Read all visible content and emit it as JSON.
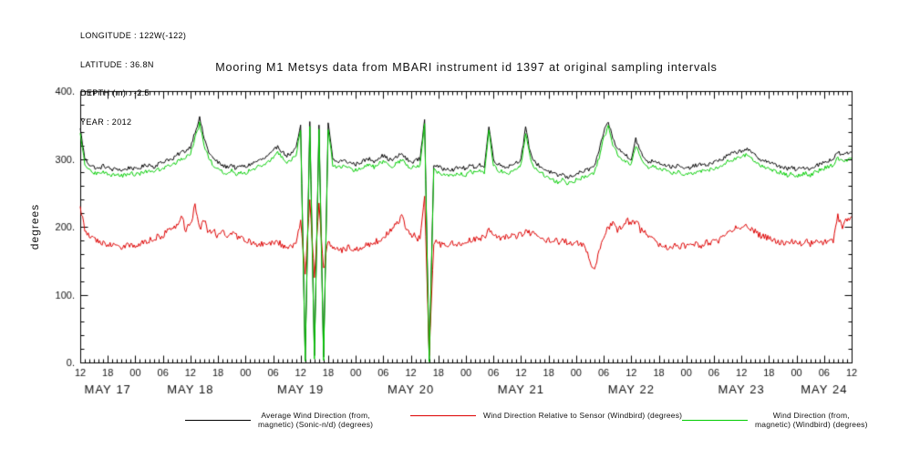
{
  "header": {
    "lines": [
      "LONGITUDE : 122W(-122)",
      "LATITUDE : 36.8N",
      "DEPTH (m) : -2.5",
      "YEAR : 2012"
    ]
  },
  "title": "Mooring M1 Metsys data from MBARI instrument id 1397 at original sampling intervals",
  "legend": {
    "items": [
      {
        "color": "#000000",
        "lines": [
          "Average Wind Direction (from,",
          "magnetic) (Sonic-n/d) (degrees)"
        ]
      },
      {
        "color": "#dd0000",
        "lines": [
          "Wind Direction Relative to Sensor (Windbird) (degrees)"
        ]
      },
      {
        "color": "#00cc00",
        "lines": [
          "Wind Direction (from,",
          "magnetic) (Windbird) (degrees)"
        ]
      }
    ]
  },
  "chart_data": {
    "type": "line",
    "title": "Mooring M1 Metsys data from MBARI instrument id 1397 at original sampling intervals",
    "xlabel": "",
    "ylabel": "degrees",
    "ylim": [
      0,
      400
    ],
    "grid": false,
    "legend_position": "bottom",
    "x_unit": "hours since 12:00 MAY 17 2012",
    "x_start": 0,
    "x_step": 1,
    "x_end": 168,
    "x_major_tick_hours": 6,
    "x_minor_tick_hours": 1,
    "y_minor_tick": 20,
    "y_ticks": {
      "values": [
        0,
        100,
        200,
        300,
        400
      ],
      "labels": [
        "0.",
        "100.",
        "200.",
        "300.",
        "400."
      ]
    },
    "x_tick_labels": [
      "12",
      "18",
      "00",
      "06",
      "12",
      "18",
      "00",
      "06",
      "12",
      "18",
      "00",
      "06",
      "12",
      "18",
      "00",
      "06",
      "12",
      "18",
      "00",
      "06",
      "12",
      "18",
      "00",
      "06",
      "12",
      "18",
      "00",
      "06",
      "12"
    ],
    "day_labels": [
      {
        "label": "MAY 17",
        "center_hour": 6
      },
      {
        "label": "MAY 18",
        "center_hour": 24
      },
      {
        "label": "MAY 19",
        "center_hour": 48
      },
      {
        "label": "MAY 20",
        "center_hour": 72
      },
      {
        "label": "MAY 21",
        "center_hour": 96
      },
      {
        "label": "MAY 22",
        "center_hour": 120
      },
      {
        "label": "MAY 23",
        "center_hour": 144
      },
      {
        "label": "MAY 24",
        "center_hour": 162
      }
    ],
    "series": [
      {
        "name": "Average Wind Direction (from, magnetic) (Sonic-n/d) (degrees)",
        "color": "#000000",
        "noise": 3,
        "values": [
          345,
          300,
          292,
          288,
          285,
          290,
          287,
          284,
          286,
          283,
          285,
          288,
          284,
          287,
          290,
          292,
          288,
          293,
          295,
          300,
          298,
          305,
          310,
          312,
          318,
          340,
          360,
          330,
          310,
          300,
          295,
          290,
          288,
          292,
          285,
          290,
          288,
          292,
          295,
          298,
          300,
          305,
          310,
          320,
          310,
          305,
          308,
          315,
          350,
          5,
          355,
          10,
          350,
          8,
          352,
          300,
          295,
          298,
          296,
          294,
          292,
          295,
          298,
          300,
          297,
          302,
          305,
          300,
          298,
          303,
          308,
          300,
          295,
          298,
          300,
          358,
          2,
          292,
          288,
          285,
          287,
          284,
          286,
          288,
          285,
          290,
          288,
          292,
          287,
          348,
          300,
          292,
          290,
          288,
          292,
          295,
          300,
          345,
          310,
          295,
          290,
          285,
          282,
          278,
          275,
          278,
          272,
          275,
          278,
          280,
          283,
          285,
          290,
          310,
          340,
          355,
          330,
          315,
          310,
          305,
          300,
          330,
          310,
          300,
          295,
          298,
          295,
          292,
          290,
          288,
          290,
          287,
          285,
          288,
          290,
          292,
          290,
          293,
          295,
          298,
          300,
          305,
          308,
          310,
          312,
          315,
          310,
          305,
          300,
          298,
          295,
          292,
          290,
          288,
          285,
          287,
          284,
          286,
          288,
          285,
          290,
          292,
          295,
          298,
          300,
          310,
          305,
          308,
          310
        ]
      },
      {
        "name": "Wind Direction Relative to Sensor (Windbird) (degrees)",
        "color": "#dd0000",
        "noise": 5,
        "values": [
          230,
          195,
          185,
          180,
          178,
          176,
          175,
          172,
          174,
          170,
          172,
          174,
          172,
          175,
          178,
          180,
          182,
          185,
          188,
          192,
          195,
          200,
          215,
          195,
          205,
          230,
          195,
          210,
          190,
          195,
          185,
          195,
          188,
          192,
          185,
          182,
          180,
          178,
          176,
          174,
          176,
          178,
          175,
          178,
          172,
          170,
          172,
          175,
          210,
          130,
          240,
          125,
          235,
          135,
          180,
          170,
          168,
          166,
          168,
          170,
          168,
          170,
          172,
          175,
          178,
          180,
          185,
          190,
          195,
          205,
          215,
          200,
          190,
          185,
          182,
          245,
          10,
          178,
          175,
          172,
          174,
          176,
          173,
          175,
          177,
          180,
          183,
          185,
          182,
          200,
          185,
          183,
          186,
          184,
          187,
          185,
          188,
          195,
          190,
          188,
          185,
          183,
          180,
          182,
          178,
          180,
          177,
          175,
          176,
          174,
          172,
          145,
          140,
          165,
          185,
          200,
          205,
          195,
          200,
          210,
          205,
          210,
          195,
          190,
          185,
          180,
          175,
          172,
          170,
          172,
          170,
          172,
          170,
          172,
          174,
          172,
          175,
          177,
          178,
          180,
          185,
          190,
          195,
          198,
          200,
          202,
          198,
          192,
          188,
          185,
          182,
          180,
          178,
          176,
          175,
          177,
          175,
          176,
          178,
          175,
          177,
          179,
          176,
          178,
          180,
          215,
          200,
          210,
          215
        ]
      },
      {
        "name": "Wind Direction (from, magnetic) (Windbird) (degrees)",
        "color": "#00cc00",
        "noise": 3,
        "values": [
          338,
          292,
          284,
          280,
          277,
          281,
          279,
          276,
          277,
          275,
          277,
          279,
          276,
          278,
          281,
          283,
          280,
          284,
          286,
          291,
          289,
          296,
          301,
          303,
          309,
          331,
          352,
          321,
          301,
          291,
          286,
          281,
          279,
          283,
          276,
          281,
          279,
          283,
          286,
          289,
          291,
          296,
          301,
          311,
          301,
          296,
          299,
          306,
          342,
          2,
          348,
          5,
          344,
          3,
          345,
          291,
          286,
          289,
          287,
          285,
          283,
          286,
          289,
          291,
          288,
          293,
          296,
          291,
          289,
          294,
          299,
          291,
          286,
          289,
          291,
          352,
          1,
          283,
          279,
          276,
          278,
          275,
          277,
          279,
          276,
          281,
          279,
          283,
          278,
          340,
          291,
          283,
          281,
          279,
          283,
          286,
          291,
          336,
          301,
          286,
          281,
          276,
          273,
          269,
          266,
          269,
          263,
          266,
          269,
          271,
          274,
          276,
          281,
          301,
          331,
          347,
          321,
          306,
          301,
          296,
          291,
          321,
          301,
          291,
          286,
          289,
          286,
          283,
          281,
          279,
          281,
          278,
          276,
          279,
          281,
          283,
          281,
          284,
          286,
          289,
          291,
          296,
          299,
          301,
          303,
          306,
          301,
          296,
          291,
          289,
          286,
          283,
          281,
          279,
          276,
          278,
          275,
          277,
          279,
          276,
          281,
          283,
          286,
          289,
          291,
          301,
          296,
          299,
          301
        ]
      }
    ]
  }
}
